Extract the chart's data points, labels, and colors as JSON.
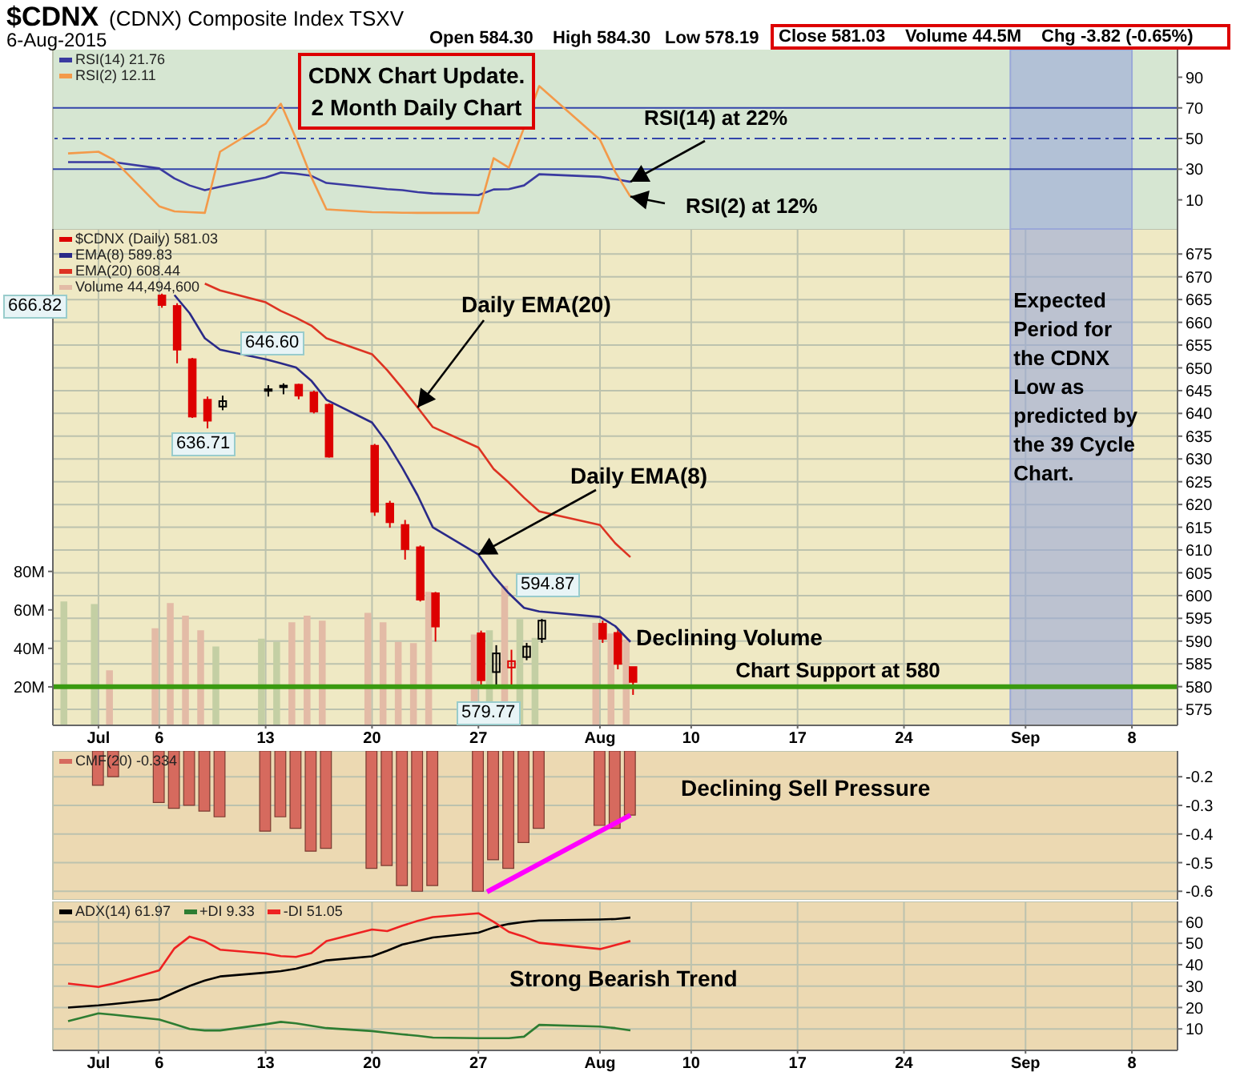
{
  "chart_data": [
    {
      "type": "line",
      "title": "$CDNX",
      "subtitle": "(CDNX) Composite Index TSXV",
      "annotations": [
        "6-Aug-2015",
        "Open 584.30",
        "High 584.30",
        "Low 578.19",
        "Close 581.03",
        "Volume 44.5M",
        "Chg -3.82 (-0.65%)",
        "CDNX Chart Update. 2 Month Daily Chart",
        {
          "text": "RSI(14) at 22%",
          "x": "2015-08-06",
          "y": 21.76
        },
        {
          "text": "RSI(2) at 12%",
          "x": "2015-08-06",
          "y": 12.11
        }
      ],
      "x": [
        "2015-06-30",
        "2015-07-02",
        "2015-07-03",
        "2015-07-06",
        "2015-07-07",
        "2015-07-08",
        "2015-07-09",
        "2015-07-10",
        "2015-07-13",
        "2015-07-14",
        "2015-07-15",
        "2015-07-16",
        "2015-07-17",
        "2015-07-20",
        "2015-07-21",
        "2015-07-22",
        "2015-07-23",
        "2015-07-24",
        "2015-07-27",
        "2015-07-28",
        "2015-07-29",
        "2015-07-30",
        "2015-07-31",
        "2015-08-04",
        "2015-08-05",
        "2015-08-06"
      ],
      "xlim": [
        "2015-06-29",
        "2015-09-11"
      ],
      "xticks": [
        {
          "value": "2015-07-02",
          "label": null
        },
        {
          "value": "2015-07-06",
          "label": null
        },
        {
          "value": "2015-07-13",
          "label": null
        },
        {
          "value": "2015-07-20",
          "label": null
        },
        {
          "value": "2015-07-27",
          "label": null
        },
        {
          "value": "2015-08-04",
          "label": null
        },
        {
          "value": "2015-08-10",
          "label": null
        },
        {
          "value": "2015-08-17",
          "label": null
        },
        {
          "value": "2015-08-24",
          "label": null
        },
        {
          "value": "2015-09-01",
          "label": null
        },
        {
          "value": "2015-09-08",
          "label": null
        }
      ],
      "ylim": [
        -9,
        108
      ],
      "yticks": [
        10,
        30,
        50,
        70,
        90
      ],
      "series": [
        {
          "name": "RSI(14) 21.76",
          "color": "#3a3aa0",
          "values": [
            34.6,
            34.6,
            34.6,
            30.5,
            24,
            19.4,
            16.3,
            18.5,
            24.6,
            27.8,
            27,
            25.7,
            21,
            18,
            17,
            16.3,
            15,
            14.2,
            13.1,
            16.8,
            17,
            19.4,
            26.7,
            25,
            23.5,
            21.76
          ]
        },
        {
          "name": "RSI(2) 12.11",
          "color": "#f39a4a",
          "values": [
            40.3,
            41.4,
            36.1,
            5.8,
            2.5,
            2,
            1.5,
            41.4,
            59.7,
            72.7,
            50,
            25,
            3.8,
            2,
            1.8,
            1.6,
            1.5,
            1.5,
            1.5,
            37.2,
            31,
            57,
            84.2,
            49.2,
            28.3,
            12.11
          ]
        }
      ],
      "ref_lines": [
        {
          "axis": "y",
          "value": 70,
          "color": "#3344aa",
          "line_style": "solid"
        },
        {
          "axis": "y",
          "value": 50,
          "color": "#3344aa",
          "line_style": "dashed"
        },
        {
          "axis": "y",
          "value": 30,
          "color": "#3344aa",
          "line_style": "solid"
        }
      ],
      "bands": [
        {
          "axis": "x",
          "from": "2015-08-31",
          "to": "2015-09-08",
          "color": "#9aa8d8"
        }
      ],
      "grid": "x",
      "legend": "top left",
      "tick_labels": "y"
    },
    {
      "type": "candlestick",
      "annotations": [
        {
          "text": "Daily EMA(20)",
          "x": "2015-07-23",
          "y": 641.3
        },
        {
          "text": "Daily EMA(8)",
          "x": "2015-07-27",
          "y": 609
        },
        "Declining Volume",
        "666.82",
        "646.60",
        "636.71",
        "579.77",
        "594.87"
      ],
      "xlim": [
        "2015-06-29",
        "2015-09-11"
      ],
      "xticks": [
        {
          "value": "2015-07-02",
          "label": "Jul"
        },
        {
          "value": "2015-07-06",
          "label": "6"
        },
        {
          "value": "2015-07-13",
          "label": "13"
        },
        {
          "value": "2015-07-20",
          "label": "20"
        },
        {
          "value": "2015-07-27",
          "label": "27"
        },
        {
          "value": "2015-08-04",
          "label": "Aug"
        },
        {
          "value": "2015-08-10",
          "label": "10"
        },
        {
          "value": "2015-08-17",
          "label": "17"
        },
        {
          "value": "2015-08-24",
          "label": "24"
        },
        {
          "value": "2015-09-01",
          "label": "Sep"
        },
        {
          "value": "2015-09-08",
          "label": "8"
        }
      ],
      "ylim": [
        571.5,
        680.5
      ],
      "yticks": [
        575,
        580,
        585,
        590,
        595,
        600,
        605,
        610,
        615,
        620,
        625,
        630,
        635,
        640,
        645,
        650,
        655,
        660,
        665,
        670,
        675
      ],
      "y2lim": [
        0,
        258
      ],
      "y2ticks": [
        {
          "value": 20,
          "label": "20M"
        },
        {
          "value": 40,
          "label": "40M"
        },
        {
          "value": 60,
          "label": "60M"
        },
        {
          "value": 80,
          "label": "80M"
        }
      ],
      "series": [
        {
          "name": "$CDNX (Daily) 581.03",
          "color": "#dd0000",
          "x": [
            "2015-07-06",
            "2015-07-07",
            "2015-07-08",
            "2015-07-09",
            "2015-07-10",
            "2015-07-13",
            "2015-07-14",
            "2015-07-15",
            "2015-07-16",
            "2015-07-17",
            "2015-07-20",
            "2015-07-21",
            "2015-07-22",
            "2015-07-23",
            "2015-07-24",
            "2015-07-27",
            "2015-07-28",
            "2015-07-29",
            "2015-07-30",
            "2015-07-31",
            "2015-08-04",
            "2015-08-05",
            "2015-08-06"
          ],
          "ohlc": [
            [
              665.9,
              666.3,
              663.2,
              663.8
            ],
            [
              663.6,
              664.2,
              651,
              654
            ],
            [
              651.9,
              652.2,
              639,
              639.3
            ],
            [
              643,
              643.7,
              636.71,
              638.4
            ],
            [
              641.5,
              643.9,
              640.7,
              642.7
            ],
            [
              645.2,
              646.2,
              643.7,
              645.3
            ],
            [
              646.1,
              646.6,
              644.2,
              646
            ],
            [
              646.3,
              646.5,
              643.1,
              643.9
            ],
            [
              644.6,
              645,
              640,
              640.4
            ],
            [
              641.9,
              642.2,
              630.3,
              630.5
            ],
            [
              632.9,
              633.3,
              617.5,
              618.4
            ],
            [
              620.2,
              620.8,
              614.9,
              616.1
            ],
            [
              615.5,
              616.6,
              607.9,
              610.2
            ],
            [
              610.6,
              611,
              598.7,
              599.1
            ],
            [
              600.5,
              600.8,
              589.9,
              593.2
            ],
            [
              591.7,
              592.3,
              579.9,
              581.4
            ],
            [
              583.2,
              589.1,
              579.77,
              587.3
            ],
            [
              584.2,
              588.1,
              579.9,
              585.6
            ],
            [
              586.5,
              589.6,
              585.8,
              588.8
            ],
            [
              590.5,
              594.87,
              589.6,
              594.5
            ],
            [
              593.8,
              594.5,
              589.6,
              590.5
            ],
            [
              591.8,
              592.8,
              583.8,
              585
            ],
            [
              584.3,
              584.3,
              578.19,
              581.03
            ]
          ],
          "colors": [
            "#dd0000",
            "#dd0000",
            "#dd0000",
            "#dd0000",
            "#000000",
            "#000000",
            "#000000",
            "#dd0000",
            "#dd0000",
            "#dd0000",
            "#dd0000",
            "#dd0000",
            "#dd0000",
            "#dd0000",
            "#dd0000",
            "#dd0000",
            "#000000",
            "#dd0000",
            "#000000",
            "#000000",
            "#dd0000",
            "#dd0000",
            "#dd0000"
          ]
        },
        {
          "type": "line",
          "name": "EMA(8) 589.83",
          "color": "#2a2a88",
          "x": [
            "2015-07-07",
            "2015-07-08",
            "2015-07-09",
            "2015-07-10",
            "2015-07-13",
            "2015-07-14",
            "2015-07-15",
            "2015-07-16",
            "2015-07-17",
            "2015-07-20",
            "2015-07-21",
            "2015-07-22",
            "2015-07-23",
            "2015-07-24",
            "2015-07-27",
            "2015-07-28",
            "2015-07-29",
            "2015-07-30",
            "2015-07-31",
            "2015-08-04",
            "2015-08-05",
            "2015-08-06"
          ],
          "values": [
            666,
            662,
            656.5,
            654,
            651.9,
            651,
            650.1,
            647.2,
            643,
            638,
            633.5,
            628,
            622,
            615,
            609,
            604.3,
            600.5,
            597.3,
            596.5,
            595.3,
            593.3,
            589.83
          ]
        },
        {
          "type": "line",
          "name": "EMA(20) 608.44",
          "color": "#dd3322",
          "x": [
            "2015-07-09",
            "2015-07-10",
            "2015-07-13",
            "2015-07-14",
            "2015-07-15",
            "2015-07-16",
            "2015-07-17",
            "2015-07-20",
            "2015-07-21",
            "2015-07-22",
            "2015-07-23",
            "2015-07-24",
            "2015-07-27",
            "2015-07-28",
            "2015-07-29",
            "2015-07-30",
            "2015-07-31",
            "2015-08-04",
            "2015-08-05",
            "2015-08-06"
          ],
          "values": [
            668.5,
            667,
            664.4,
            662.5,
            661,
            659.3,
            656.5,
            653,
            649.5,
            645.5,
            641.3,
            637,
            632.5,
            627.8,
            624.8,
            621.5,
            618.5,
            615.5,
            611.5,
            608.44
          ]
        },
        {
          "type": "bar",
          "axis": "y2",
          "name": "Volume 44,494,600",
          "color": "#e3bba6",
          "x": [
            "2015-06-30",
            "2015-07-02",
            "2015-07-03",
            "2015-07-06",
            "2015-07-07",
            "2015-07-08",
            "2015-07-09",
            "2015-07-10",
            "2015-07-13",
            "2015-07-14",
            "2015-07-15",
            "2015-07-16",
            "2015-07-17",
            "2015-07-20",
            "2015-07-21",
            "2015-07-22",
            "2015-07-23",
            "2015-07-24",
            "2015-07-27",
            "2015-07-28",
            "2015-07-29",
            "2015-07-30",
            "2015-07-31",
            "2015-08-04",
            "2015-08-05",
            "2015-08-06"
          ],
          "values": [
            64.4,
            63,
            28.6,
            50.5,
            63.6,
            57,
            49.4,
            41,
            45,
            43.4,
            53.6,
            57,
            54.4,
            58.5,
            53.6,
            43.4,
            42.8,
            69.4,
            47.2,
            49.4,
            72.5,
            55.2,
            45.5,
            53.3,
            47.8,
            44.49
          ],
          "colors": [
            "#c4cfa4",
            "#c4cfa4",
            "#e3bba6",
            "#e3bba6",
            "#e3bba6",
            "#e3bba6",
            "#e3bba6",
            "#c4cfa4",
            "#c4cfa4",
            "#c4cfa4",
            "#e3bba6",
            "#e3bba6",
            "#e3bba6",
            "#e3bba6",
            "#e3bba6",
            "#e3bba6",
            "#e3bba6",
            "#e3bba6",
            "#e3bba6",
            "#c4cfa4",
            "#e3bba6",
            "#c4cfa4",
            "#c4cfa4",
            "#e3bba6",
            "#e3bba6",
            "#e3bba6"
          ]
        }
      ],
      "ref_lines": [
        {
          "axis": "y",
          "value": 580,
          "label": "Chart Support at 580",
          "color": "#3a9a10",
          "line_style": "solid"
        }
      ],
      "bands": [
        {
          "axis": "x",
          "from": "2015-08-31",
          "to": "2015-09-08",
          "label": "Expected Period for the CDNX Low as predicted by the 39 Cycle Chart.",
          "color": "#9aa8d8"
        }
      ],
      "grid": true,
      "legend": "top left"
    },
    {
      "type": "bar",
      "annotations": [
        {
          "text": "Declining Sell Pressure",
          "x": "2015-08-06",
          "y": -0.334
        }
      ],
      "x": [
        "2015-07-02",
        "2015-07-03",
        "2015-07-06",
        "2015-07-07",
        "2015-07-08",
        "2015-07-09",
        "2015-07-10",
        "2015-07-13",
        "2015-07-14",
        "2015-07-15",
        "2015-07-16",
        "2015-07-17",
        "2015-07-20",
        "2015-07-21",
        "2015-07-22",
        "2015-07-23",
        "2015-07-24",
        "2015-07-27",
        "2015-07-28",
        "2015-07-29",
        "2015-07-30",
        "2015-07-31",
        "2015-08-04",
        "2015-08-05",
        "2015-08-06"
      ],
      "xlim": [
        "2015-06-29",
        "2015-09-11"
      ],
      "xticks": [
        {
          "value": "2015-07-02",
          "label": null
        },
        {
          "value": "2015-07-06",
          "label": null
        },
        {
          "value": "2015-07-13",
          "label": null
        },
        {
          "value": "2015-07-20",
          "label": null
        },
        {
          "value": "2015-07-27",
          "label": null
        },
        {
          "value": "2015-08-04",
          "label": null
        },
        {
          "value": "2015-08-10",
          "label": null
        },
        {
          "value": "2015-08-17",
          "label": null
        },
        {
          "value": "2015-08-24",
          "label": null
        },
        {
          "value": "2015-09-01",
          "label": null
        },
        {
          "value": "2015-09-08",
          "label": null
        }
      ],
      "ylim": [
        -0.63,
        -0.11
      ],
      "yticks": [
        -0.2,
        -0.3,
        -0.4,
        -0.5,
        -0.6
      ],
      "series": [
        {
          "name": "CMF(20) -0.334",
          "color": "#d66a5e",
          "values": [
            -0.23,
            -0.2,
            -0.29,
            -0.31,
            -0.3,
            -0.32,
            -0.34,
            -0.39,
            -0.34,
            -0.38,
            -0.46,
            -0.45,
            -0.52,
            -0.51,
            -0.58,
            -0.6,
            -0.58,
            -0.6,
            -0.49,
            -0.52,
            -0.43,
            -0.38,
            -0.37,
            -0.38,
            -0.334
          ]
        }
      ],
      "grid": true,
      "legend": "top left",
      "tick_labels": "y"
    },
    {
      "type": "line",
      "annotations": [
        "Strong Bearish Trend"
      ],
      "x": [
        "2015-06-30",
        "2015-07-02",
        "2015-07-03",
        "2015-07-06",
        "2015-07-07",
        "2015-07-08",
        "2015-07-09",
        "2015-07-10",
        "2015-07-13",
        "2015-07-14",
        "2015-07-15",
        "2015-07-16",
        "2015-07-17",
        "2015-07-20",
        "2015-07-21",
        "2015-07-22",
        "2015-07-23",
        "2015-07-24",
        "2015-07-27",
        "2015-07-28",
        "2015-07-29",
        "2015-07-30",
        "2015-07-31",
        "2015-08-04",
        "2015-08-05",
        "2015-08-06"
      ],
      "xlim": [
        "2015-06-29",
        "2015-09-11"
      ],
      "xticks": [
        {
          "value": "2015-07-02",
          "label": "Jul"
        },
        {
          "value": "2015-07-06",
          "label": "6"
        },
        {
          "value": "2015-07-13",
          "label": "13"
        },
        {
          "value": "2015-07-20",
          "label": "20"
        },
        {
          "value": "2015-07-27",
          "label": "27"
        },
        {
          "value": "2015-08-04",
          "label": "Aug"
        },
        {
          "value": "2015-08-10",
          "label": "10"
        },
        {
          "value": "2015-08-17",
          "label": "17"
        },
        {
          "value": "2015-08-24",
          "label": "24"
        },
        {
          "value": "2015-09-01",
          "label": "Sep"
        },
        {
          "value": "2015-09-08",
          "label": "8"
        }
      ],
      "ylim": [
        0,
        69.5
      ],
      "yticks": [
        10,
        20,
        30,
        40,
        50,
        60
      ],
      "series": [
        {
          "name": "ADX(14) 61.97",
          "color": "#000000",
          "values": [
            20,
            21,
            21.7,
            23.8,
            27,
            30.1,
            32.6,
            34.5,
            36.3,
            37,
            38.1,
            40,
            42,
            43.9,
            46.5,
            49.4,
            51,
            52.7,
            54.9,
            57.4,
            59,
            60,
            60.6,
            61.1,
            61.3,
            61.97
          ]
        },
        {
          "name": "+DI 9.33",
          "color": "#2e7d32",
          "values": [
            13.6,
            17.3,
            16.6,
            14.4,
            12.2,
            10,
            9.3,
            9.3,
            12.2,
            13.3,
            12.6,
            11.5,
            10.4,
            9,
            8.2,
            7.5,
            6.8,
            6,
            5.7,
            5.7,
            5.7,
            6.4,
            11.9,
            11.1,
            10.4,
            9.33
          ]
        },
        {
          "name": "-DI 51.05",
          "color": "#ee2222",
          "values": [
            31.2,
            29.6,
            31.2,
            37.4,
            47.6,
            53.1,
            51,
            47,
            45.2,
            44,
            43.6,
            45.4,
            51,
            56.4,
            55.7,
            58.2,
            60.4,
            62.2,
            64,
            60,
            55.3,
            53.1,
            50.2,
            47.3,
            49.1,
            51.05
          ]
        }
      ],
      "grid": true,
      "legend": "top left"
    }
  ]
}
